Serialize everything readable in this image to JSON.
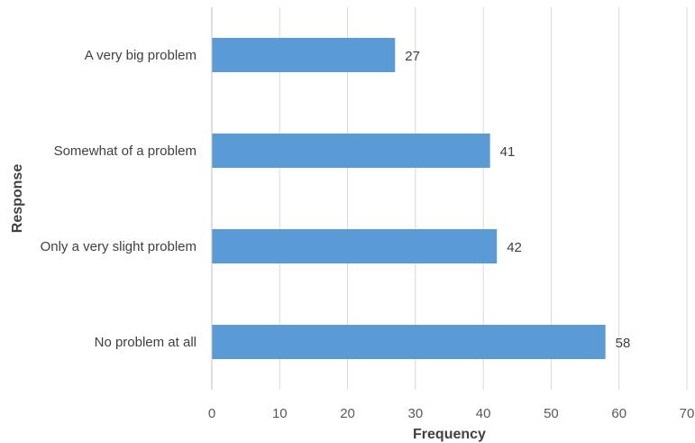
{
  "chart_data": {
    "type": "bar",
    "orientation": "horizontal",
    "categories": [
      "A very big problem",
      "Somewhat of a problem",
      "Only a very slight problem",
      "No problem at all"
    ],
    "values": [
      27,
      41,
      42,
      58
    ],
    "data_labels": [
      "27",
      "41",
      "42",
      "58"
    ],
    "title": "",
    "xlabel": "Frequency",
    "ylabel": "Response",
    "xlim": [
      0,
      70
    ],
    "x_ticks": [
      0,
      10,
      20,
      30,
      40,
      50,
      60,
      70
    ],
    "x_tick_labels": [
      "0",
      "10",
      "20",
      "30",
      "40",
      "50",
      "60",
      "70"
    ],
    "grid": "vertical",
    "legend": "none",
    "colors": {
      "bar": "#5B9BD5",
      "grid": "#D9D9D9",
      "axis": "#BFBFBF"
    }
  }
}
